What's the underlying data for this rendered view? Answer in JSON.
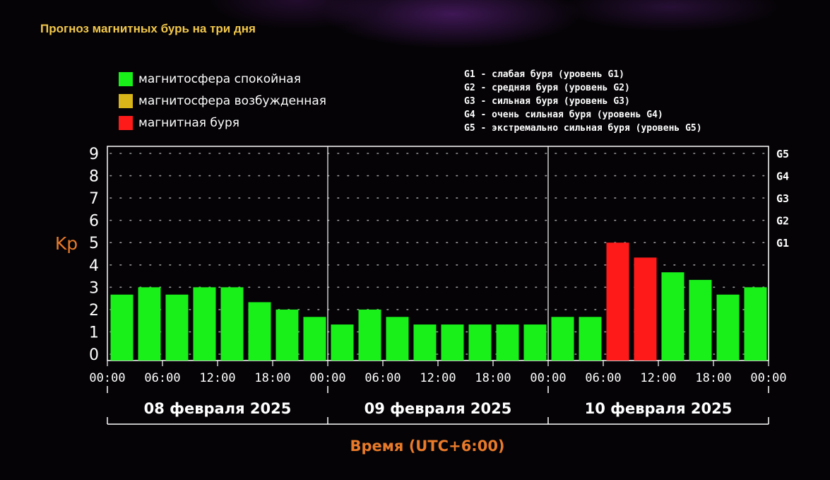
{
  "page": {
    "title": "Прогноз магнитных бурь на три дня"
  },
  "legend": {
    "items": [
      {
        "label": "магнитосфера спокойная",
        "color": "#19f01a"
      },
      {
        "label": "магнитосфера возбужденная",
        "color": "#d9b51a"
      },
      {
        "label": "магнитная буря",
        "color": "#ff1a1a"
      }
    ]
  },
  "g_legend": [
    "G1 - слабая буря (уровень G1)",
    "G2 - средняя буря (уровень G2)",
    "G3 - сильная буря (уровень G3)",
    "G4 - очень сильная буря (уровень G4)",
    "G5 - экстремально сильная буря (уровень G5)"
  ],
  "chart_data": {
    "type": "bar",
    "ylabel": "Kp",
    "xlabel": "Время (UTC+6:00)",
    "ylim": [
      0,
      9
    ],
    "yticks": [
      "0",
      "1",
      "2",
      "3",
      "4",
      "5",
      "6",
      "7",
      "8",
      "9"
    ],
    "g_levels": [
      {
        "label": "G1",
        "value": 5
      },
      {
        "label": "G2",
        "value": 6
      },
      {
        "label": "G3",
        "value": 7
      },
      {
        "label": "G4",
        "value": 8
      },
      {
        "label": "G5",
        "value": 9
      }
    ],
    "days": [
      "08 февраля 2025",
      "09 февраля 2025",
      "10 февраля 2025"
    ],
    "xticks": [
      "00:00",
      "06:00",
      "12:00",
      "18:00",
      "00:00",
      "06:00",
      "12:00",
      "18:00",
      "00:00",
      "06:00",
      "12:00",
      "18:00",
      "00:00"
    ],
    "values": [
      2.67,
      3.0,
      2.67,
      3.0,
      3.0,
      2.33,
      2.0,
      1.67,
      1.33,
      2.0,
      1.67,
      1.33,
      1.33,
      1.33,
      1.33,
      1.33,
      1.67,
      1.67,
      5.0,
      4.33,
      3.67,
      3.33,
      2.67,
      3.0
    ],
    "bar_colors": [
      "#19f01a",
      "#19f01a",
      "#19f01a",
      "#19f01a",
      "#19f01a",
      "#19f01a",
      "#19f01a",
      "#19f01a",
      "#19f01a",
      "#19f01a",
      "#19f01a",
      "#19f01a",
      "#19f01a",
      "#19f01a",
      "#19f01a",
      "#19f01a",
      "#19f01a",
      "#19f01a",
      "#ff1a1a",
      "#ff1a1a",
      "#19f01a",
      "#19f01a",
      "#19f01a",
      "#19f01a"
    ],
    "grid": true
  }
}
